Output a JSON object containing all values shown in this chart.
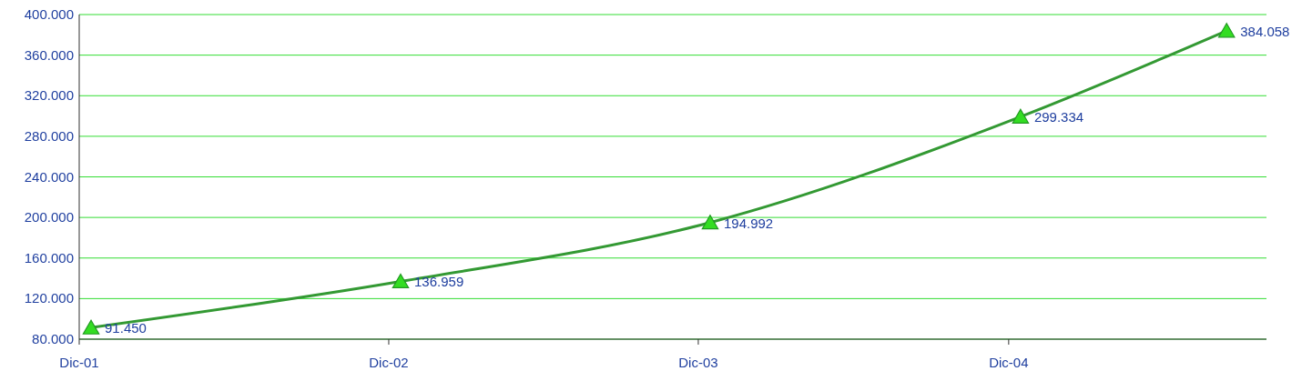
{
  "chart_data": {
    "type": "line",
    "x": [
      "2001-12-15",
      "2002-12-15",
      "2003-12-15",
      "2004-12-15",
      "2005-08-15"
    ],
    "series": [
      {
        "color": "#339933",
        "values": [
          91450,
          136959,
          194992,
          299334,
          384058
        ],
        "value_labels": [
          "91.450",
          "136.959",
          "194.992",
          "299.334",
          "384.058"
        ]
      }
    ],
    "xlim": [
      "2001-12-01",
      "2005-10-01"
    ],
    "xticks": [
      {
        "value": "2001-12-01",
        "label": "Dic-01"
      },
      {
        "value": "2002-12-01",
        "label": "Dic-02"
      },
      {
        "value": "2003-12-01",
        "label": "Dic-03"
      },
      {
        "value": "2004-12-01",
        "label": "Dic-04"
      }
    ],
    "ylim": [
      80000,
      400000
    ],
    "yticks": [
      {
        "value": 80000,
        "label": "80.000"
      },
      {
        "value": 120000,
        "label": "120.000"
      },
      {
        "value": 160000,
        "label": "160.000"
      },
      {
        "value": 200000,
        "label": "200.000"
      },
      {
        "value": 240000,
        "label": "240.000"
      },
      {
        "value": 280000,
        "label": "280.000"
      },
      {
        "value": 320000,
        "label": "320.000"
      },
      {
        "value": 360000,
        "label": "360.000"
      },
      {
        "value": 400000,
        "label": "400.000"
      }
    ],
    "grid": "y",
    "marker": "triangle",
    "line_style": "solid"
  }
}
